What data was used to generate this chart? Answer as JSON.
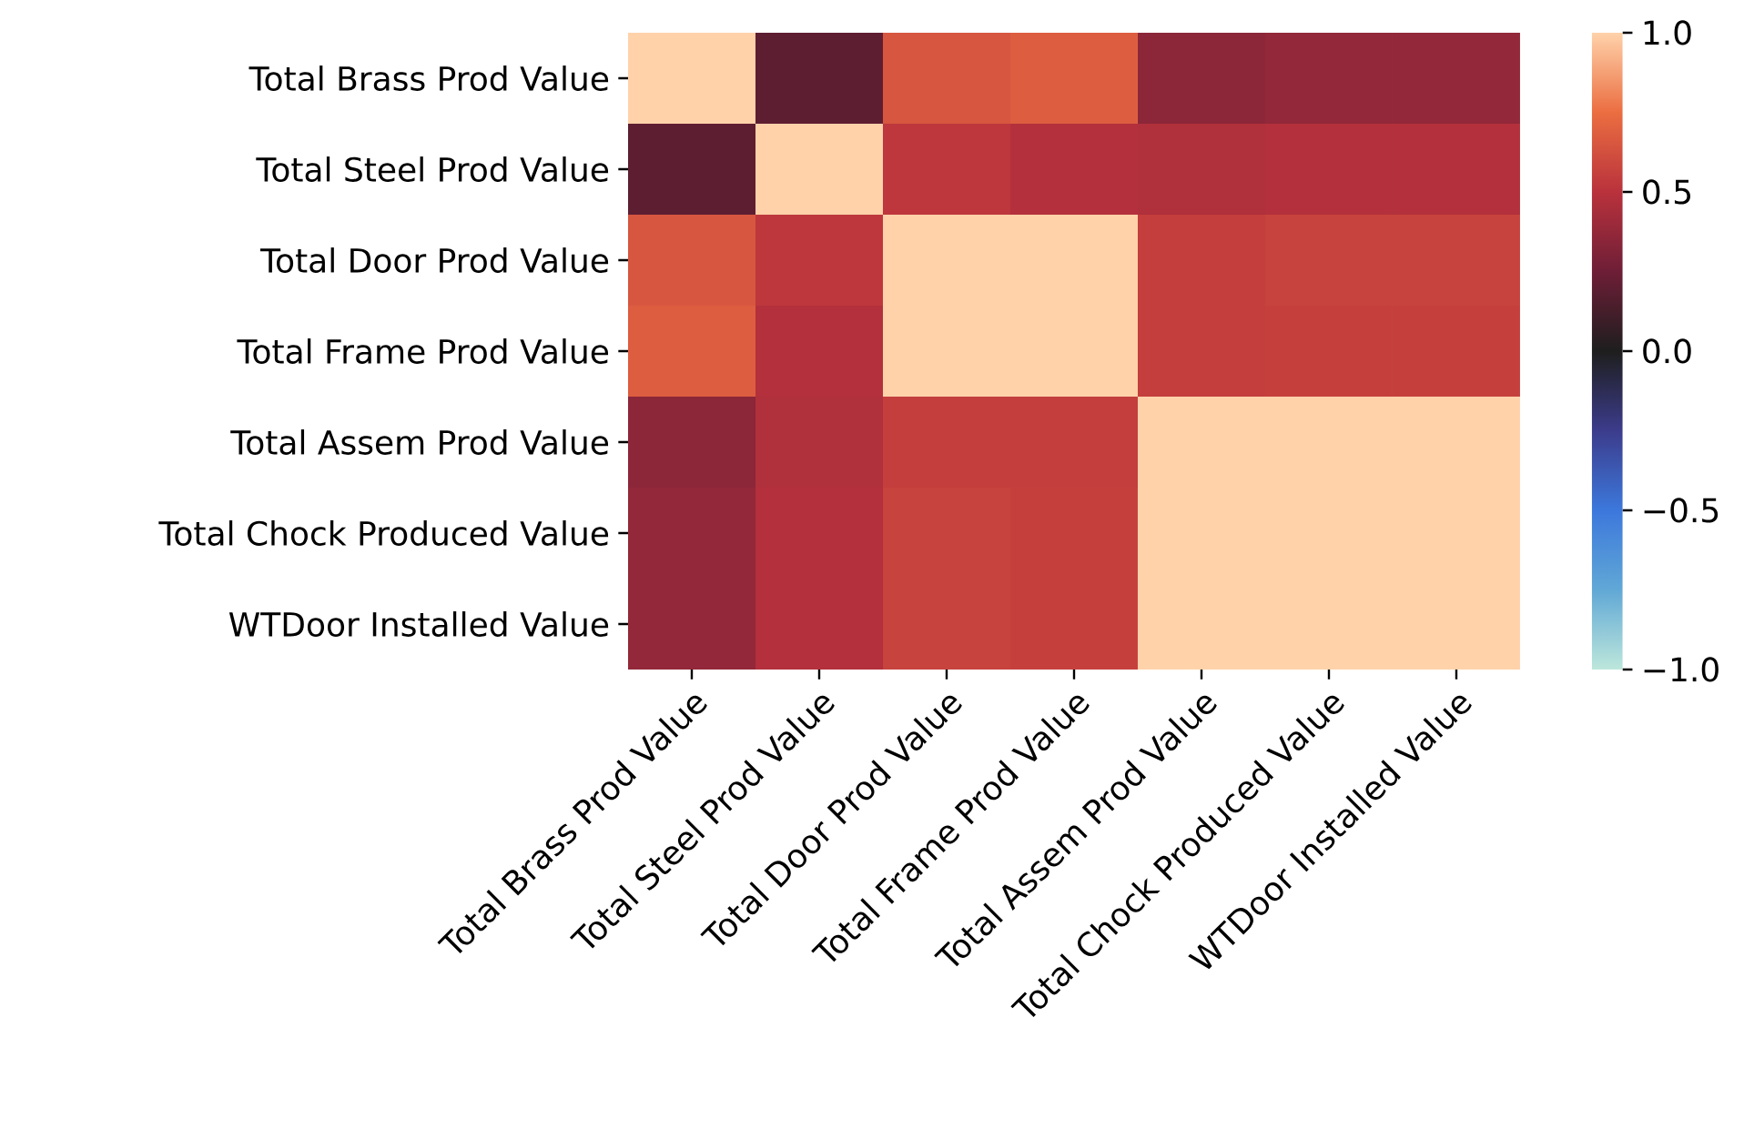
{
  "chart_data": {
    "type": "heatmap",
    "categories": [
      "Total Brass Prod Value",
      "Total Steel Prod Value",
      "Total Door Prod Value",
      "Total Frame Prod Value",
      "Total Assem Prod Value",
      "Total Chock Produced Value",
      "WTDoor Installed Value"
    ],
    "y_categories": [
      "Total Brass Prod Value",
      "Total Steel Prod Value",
      "Total Door Prod Value",
      "Total Frame Prod Value",
      "Total Assem Prod Value",
      "Total Chock Produced Value",
      "WTDoor Installed Value"
    ],
    "cells": [
      [
        1.0,
        0.2,
        0.65,
        0.68,
        0.35,
        0.37,
        0.37
      ],
      [
        0.2,
        1.0,
        0.52,
        0.48,
        0.47,
        0.48,
        0.48
      ],
      [
        0.65,
        0.52,
        1.0,
        1.0,
        0.55,
        0.57,
        0.57
      ],
      [
        0.68,
        0.48,
        1.0,
        1.0,
        0.55,
        0.56,
        0.56
      ],
      [
        0.35,
        0.47,
        0.55,
        0.55,
        1.0,
        1.0,
        1.0
      ],
      [
        0.37,
        0.48,
        0.57,
        0.56,
        1.0,
        1.0,
        1.0
      ],
      [
        0.37,
        0.48,
        0.57,
        0.56,
        1.0,
        1.0,
        1.0
      ]
    ],
    "clim": [
      -1,
      1
    ],
    "cticks": [
      {
        "value": -1,
        "label": "−1.0"
      },
      {
        "value": -0.5,
        "label": "−0.5"
      },
      {
        "value": 0,
        "label": "0.0"
      },
      {
        "value": 0.5,
        "label": "0.5"
      },
      {
        "value": 1,
        "label": "1.0"
      }
    ]
  }
}
